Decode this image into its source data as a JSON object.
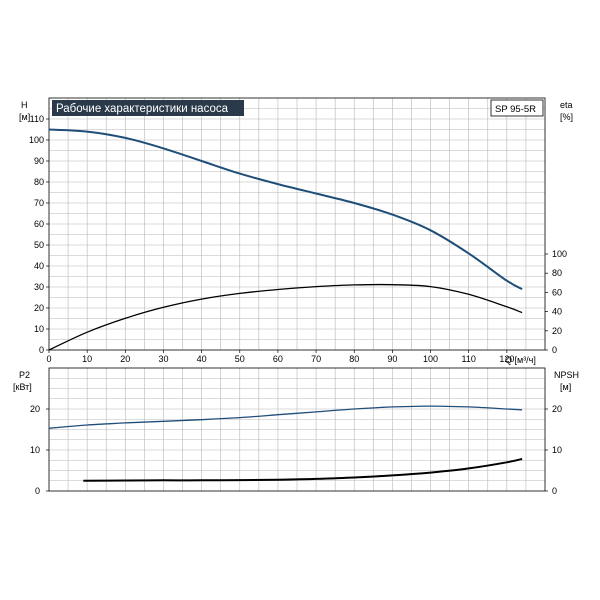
{
  "title": "Рабочие характеристики насоса",
  "model": "SP 95-5R",
  "colors": {
    "blue": "#1f4e79",
    "black": "#000000",
    "grid": "#b8b8b8",
    "title_bg": "#2b3a4a"
  },
  "axes": {
    "h_label": "H",
    "h_unit": "[м]",
    "eta_label": "eta",
    "eta_unit": "[%]",
    "q_label": "Q [м³/ч]",
    "p2_label": "P2",
    "p2_unit": "[кВт]",
    "npsh_label": "NPSH",
    "npsh_unit": "[м]"
  },
  "chart_data": [
    {
      "type": "line",
      "title": "Рабочие характеристики насоса",
      "xlabel": "Q [м³/ч]",
      "ylabel": "H [м]",
      "y2label": "eta [%]",
      "xlim": [
        0,
        130
      ],
      "ylim": [
        0,
        120
      ],
      "y2lim": [
        0,
        100
      ],
      "x_ticks": [
        0,
        10,
        20,
        30,
        40,
        50,
        60,
        70,
        80,
        90,
        100,
        110,
        120
      ],
      "y_ticks": [
        0,
        10,
        20,
        30,
        40,
        50,
        60,
        70,
        80,
        90,
        100,
        110
      ],
      "y2_ticks": [
        0,
        20,
        40,
        60,
        80,
        100
      ],
      "grid": true,
      "series": [
        {
          "axis": "left",
          "color": "#1f4e79",
          "x": [
            0,
            10,
            20,
            30,
            40,
            50,
            60,
            70,
            80,
            90,
            100,
            110,
            120,
            124
          ],
          "y": [
            105,
            104,
            101,
            96,
            90,
            84,
            79,
            74.5,
            70,
            64.5,
            57,
            46,
            33,
            29
          ]
        },
        {
          "axis": "right",
          "color": "#000000",
          "x": [
            0,
            10,
            20,
            30,
            40,
            50,
            60,
            70,
            80,
            90,
            100,
            110,
            120,
            124
          ],
          "y": [
            0,
            18.5,
            33,
            44.5,
            53,
            59,
            63,
            66,
            67.8,
            68,
            66,
            58,
            45,
            39
          ]
        }
      ]
    },
    {
      "type": "line",
      "xlabel": "Q [м³/ч]",
      "ylabel": "P2 [кВт]",
      "y2label": "NPSH [м]",
      "xlim": [
        0,
        130
      ],
      "ylim": [
        0,
        30
      ],
      "y2lim": [
        0,
        30
      ],
      "y_ticks": [
        0,
        10,
        20
      ],
      "y2_ticks": [
        0,
        10,
        20
      ],
      "grid": true,
      "series": [
        {
          "axis": "left",
          "color": "#1f4e79",
          "x": [
            0,
            10,
            20,
            30,
            40,
            50,
            60,
            70,
            80,
            90,
            100,
            110,
            120,
            124
          ],
          "y": [
            15.3,
            16.1,
            16.6,
            17,
            17.4,
            17.9,
            18.6,
            19.3,
            20,
            20.5,
            20.7,
            20.5,
            20,
            19.8
          ]
        },
        {
          "axis": "right",
          "color": "#000000",
          "x": [
            9,
            20,
            30,
            40,
            50,
            60,
            70,
            80,
            90,
            100,
            110,
            120,
            124
          ],
          "y": [
            2.5,
            2.55,
            2.6,
            2.6,
            2.65,
            2.75,
            2.95,
            3.3,
            3.8,
            4.5,
            5.5,
            7,
            7.8
          ]
        }
      ]
    }
  ]
}
